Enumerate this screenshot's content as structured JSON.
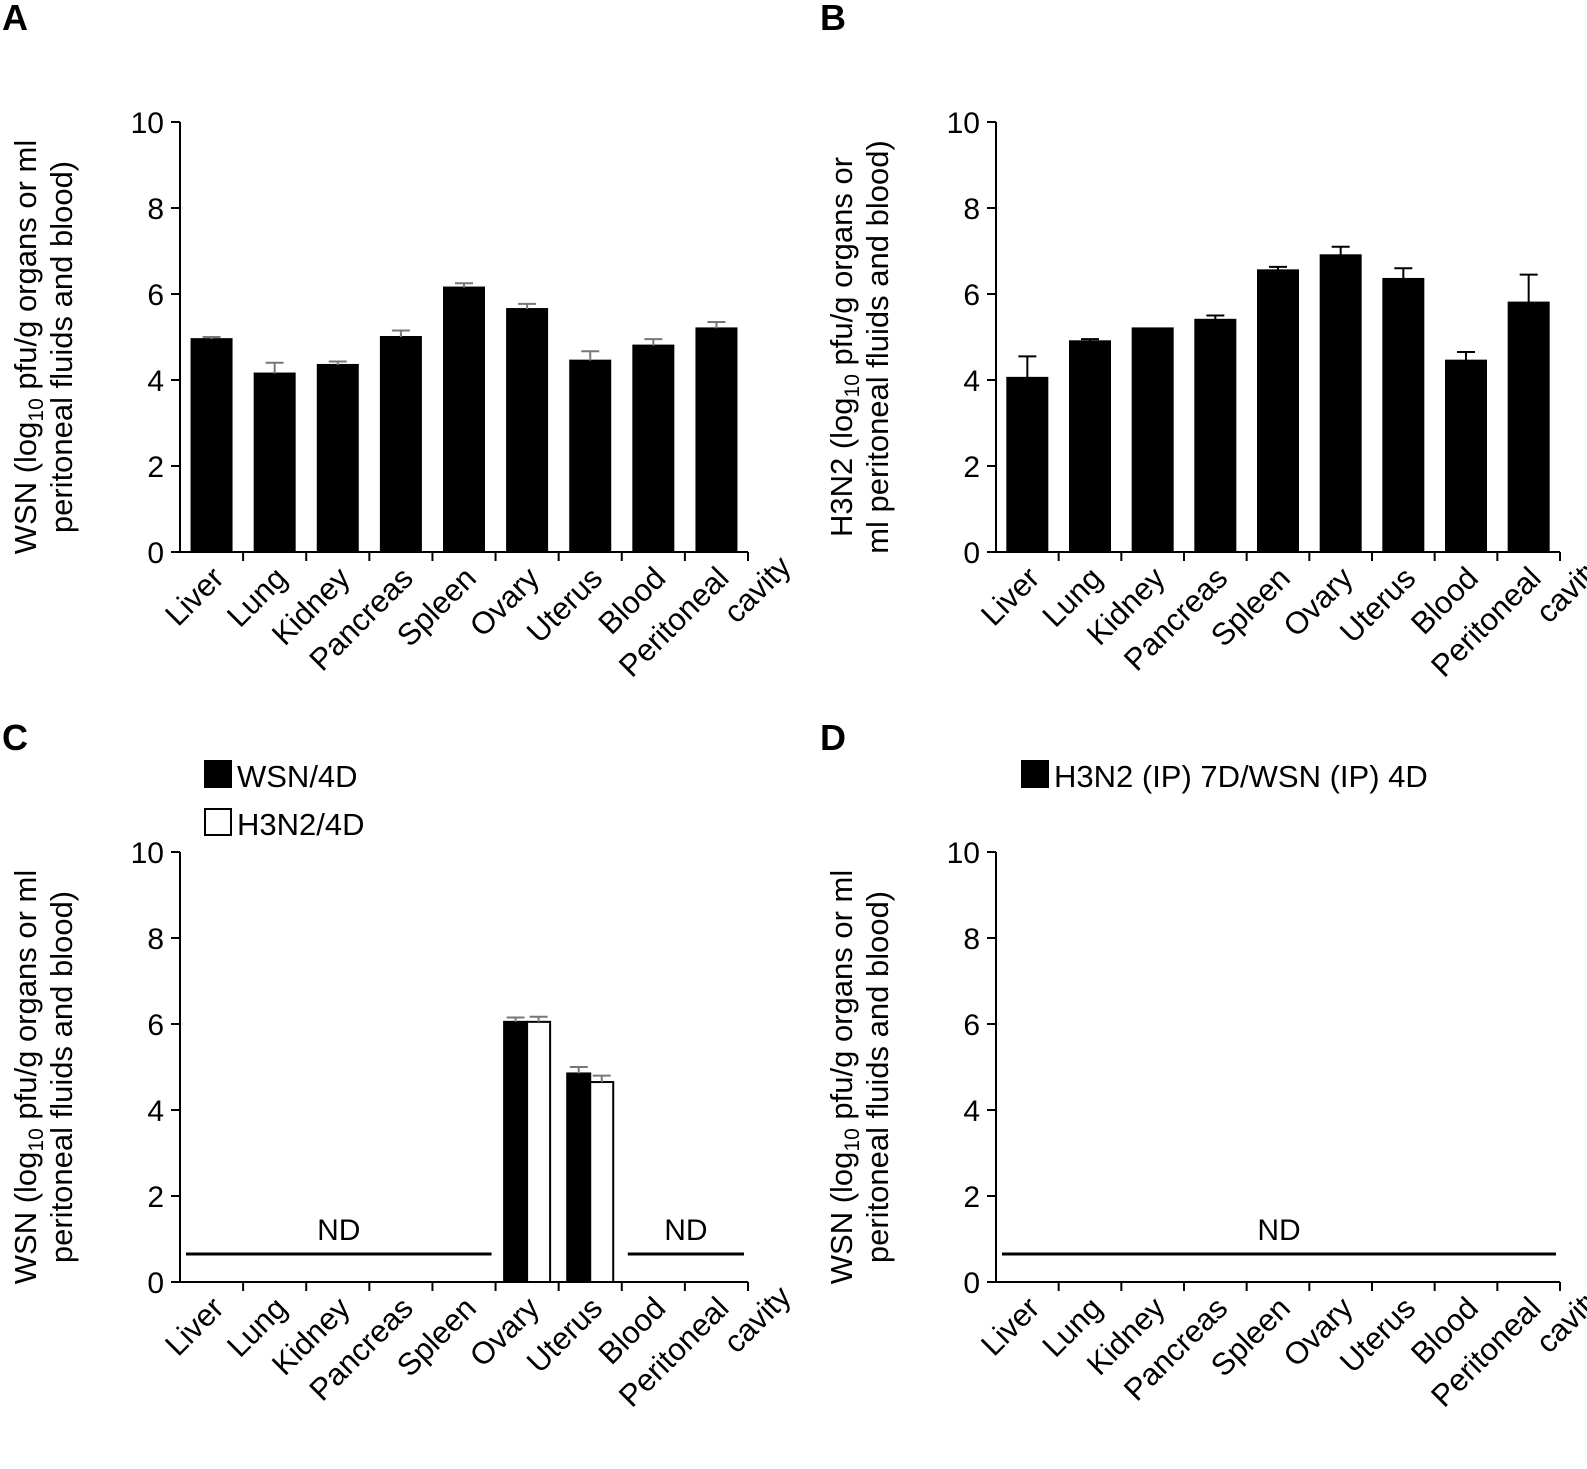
{
  "chart_data": [
    {
      "panel": "A",
      "type": "bar",
      "categories": [
        [
          "Liver"
        ],
        [
          "Lung"
        ],
        [
          "Kidney"
        ],
        [
          "Pancreas"
        ],
        [
          "Spleen"
        ],
        [
          "Ovary"
        ],
        [
          "Uterus"
        ],
        [
          "Blood"
        ],
        [
          "Peritoneal",
          "cavity"
        ]
      ],
      "ylabel_lines": [
        [
          {
            "t": "WSN (log"
          },
          {
            "t": "10",
            "sub": true
          },
          {
            "t": " pfu/g organs or ml"
          }
        ],
        [
          {
            "t": "peritoneal fluids and blood)"
          }
        ]
      ],
      "yticks": [
        "0",
        "2",
        "4",
        "6",
        "8",
        "10"
      ],
      "ylim": [
        0,
        10
      ],
      "series": [
        {
          "name": "",
          "fill": "#000000",
          "values": [
            4.95,
            4.15,
            4.35,
            5.0,
            6.15,
            5.65,
            4.45,
            4.8,
            5.2
          ],
          "errors": [
            0.05,
            0.25,
            0.08,
            0.15,
            0.1,
            0.12,
            0.22,
            0.15,
            0.15
          ]
        }
      ],
      "legend": [],
      "nd_segments": []
    },
    {
      "panel": "B",
      "type": "bar",
      "categories": [
        [
          "Liver"
        ],
        [
          "Lung"
        ],
        [
          "Kidney"
        ],
        [
          "Pancreas"
        ],
        [
          "Spleen"
        ],
        [
          "Ovary"
        ],
        [
          "Uterus"
        ],
        [
          "Blood"
        ],
        [
          "Peritoneal",
          "cavity"
        ]
      ],
      "ylabel_lines": [
        [
          {
            "t": "H3N2 (log"
          },
          {
            "t": "10",
            "sub": true
          },
          {
            "t": " pfu/g organs or"
          }
        ],
        [
          {
            "t": "ml peritoneal fluids and blood)"
          }
        ]
      ],
      "yticks": [
        "0",
        "2",
        "4",
        "6",
        "8",
        "10"
      ],
      "ylim": [
        0,
        10
      ],
      "series": [
        {
          "name": "",
          "fill": "#000000",
          "values": [
            4.05,
            4.9,
            5.2,
            5.4,
            6.55,
            6.9,
            6.35,
            4.45,
            5.8
          ],
          "errors": [
            0.5,
            0.05,
            0.0,
            0.1,
            0.08,
            0.2,
            0.25,
            0.2,
            0.65
          ]
        }
      ],
      "legend": [],
      "nd_segments": []
    },
    {
      "panel": "C",
      "type": "bar",
      "categories": [
        [
          "Liver"
        ],
        [
          "Lung"
        ],
        [
          "Kidney"
        ],
        [
          "Pancreas"
        ],
        [
          "Spleen"
        ],
        [
          "Ovary"
        ],
        [
          "Uterus"
        ],
        [
          "Blood"
        ],
        [
          "Peritoneal",
          "cavity"
        ]
      ],
      "ylabel_lines": [
        [
          {
            "t": "WSN (log"
          },
          {
            "t": "10",
            "sub": true
          },
          {
            "t": " pfu/g organs or ml"
          }
        ],
        [
          {
            "t": "peritoneal fluids and blood)"
          }
        ]
      ],
      "yticks": [
        "0",
        "2",
        "4",
        "6",
        "8",
        "10"
      ],
      "ylim": [
        0,
        10
      ],
      "series": [
        {
          "name": "WSN/4D",
          "fill": "#000000",
          "values": [
            null,
            null,
            null,
            null,
            null,
            6.05,
            4.85,
            null,
            null
          ],
          "errors": [
            null,
            null,
            null,
            null,
            null,
            0.1,
            0.15,
            null,
            null
          ]
        },
        {
          "name": "H3N2/4D",
          "fill": "#ffffff",
          "values": [
            null,
            null,
            null,
            null,
            null,
            6.05,
            4.65,
            null,
            null
          ],
          "errors": [
            null,
            null,
            null,
            null,
            null,
            0.12,
            0.15,
            null,
            null
          ]
        }
      ],
      "legend": [
        "WSN/4D",
        "H3N2/4D"
      ],
      "nd_segments": [
        {
          "from": 0,
          "to": 4,
          "y": 0.65,
          "label": "ND"
        },
        {
          "from": 7,
          "to": 8,
          "y": 0.65,
          "label": "ND"
        }
      ]
    },
    {
      "panel": "D",
      "type": "bar",
      "categories": [
        [
          "Liver"
        ],
        [
          "Lung"
        ],
        [
          "Kidney"
        ],
        [
          "Pancreas"
        ],
        [
          "Spleen"
        ],
        [
          "Ovary"
        ],
        [
          "Uterus"
        ],
        [
          "Blood"
        ],
        [
          "Peritoneal",
          "cavity"
        ]
      ],
      "ylabel_lines": [
        [
          {
            "t": "WSN (log"
          },
          {
            "t": "10",
            "sub": true
          },
          {
            "t": " pfu/g organs or ml"
          }
        ],
        [
          {
            "t": "peritoneal fluids and blood)"
          }
        ]
      ],
      "yticks": [
        "0",
        "2",
        "4",
        "6",
        "8",
        "10"
      ],
      "ylim": [
        0,
        10
      ],
      "series": [
        {
          "name": "H3N2 (IP) 7D/WSN (IP) 4D",
          "fill": "#000000",
          "values": [
            null,
            null,
            null,
            null,
            null,
            null,
            null,
            null,
            null
          ],
          "errors": [
            null,
            null,
            null,
            null,
            null,
            null,
            null,
            null,
            null
          ]
        }
      ],
      "legend": [
        "H3N2 (IP) 7D/WSN (IP) 4D"
      ],
      "nd_segments": [
        {
          "from": 0,
          "to": 8,
          "y": 0.65,
          "label": "ND"
        }
      ]
    }
  ]
}
